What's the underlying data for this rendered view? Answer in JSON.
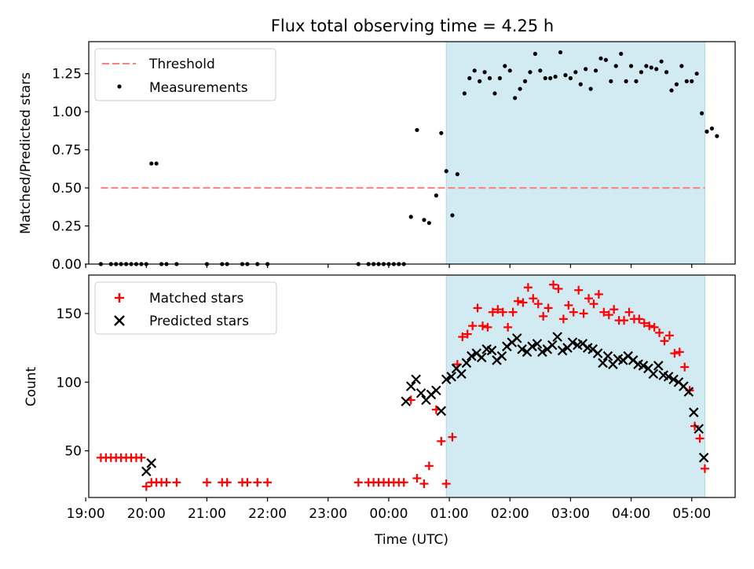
{
  "chart_data": [
    {
      "type": "scatter",
      "title": "Flux total observing time = 4.25 h",
      "ylabel": "Matched/Predicted stars",
      "xlabel": "",
      "xlim": [
        "19:03",
        "05:43"
      ],
      "ylim": [
        0,
        1.46
      ],
      "yticks": [
        "0.00",
        "0.25",
        "0.50",
        "0.75",
        "1.00",
        "1.25"
      ],
      "legend_position": "upper-left",
      "threshold": {
        "name": "Threshold",
        "value": 0.5,
        "x_range": [
          "19:15",
          "05:13"
        ],
        "color": "#ff7f7f"
      },
      "observing_window": {
        "x_range": [
          "00:57",
          "05:13"
        ],
        "color": "#add8e6"
      },
      "series": [
        {
          "name": "Measurements",
          "color": "#000000",
          "points": [
            [
              "19:15",
              0
            ],
            [
              "19:25",
              0
            ],
            [
              "19:30",
              0
            ],
            [
              "19:35",
              0
            ],
            [
              "19:40",
              0
            ],
            [
              "19:45",
              0
            ],
            [
              "19:50",
              0
            ],
            [
              "19:55",
              0
            ],
            [
              "20:00",
              0
            ],
            [
              "20:05",
              0.66
            ],
            [
              "20:10",
              0.66
            ],
            [
              "20:15",
              0
            ],
            [
              "20:20",
              0
            ],
            [
              "20:30",
              0
            ],
            [
              "21:00",
              0
            ],
            [
              "21:15",
              0
            ],
            [
              "21:20",
              0
            ],
            [
              "21:35",
              0
            ],
            [
              "21:40",
              0
            ],
            [
              "21:50",
              0
            ],
            [
              "22:00",
              0
            ],
            [
              "23:30",
              0
            ],
            [
              "23:40",
              0
            ],
            [
              "23:45",
              0
            ],
            [
              "23:50",
              0
            ],
            [
              "23:55",
              0
            ],
            [
              "00:00",
              0
            ],
            [
              "00:05",
              0
            ],
            [
              "00:10",
              0
            ],
            [
              "00:15",
              0
            ],
            [
              "00:22",
              0.31
            ],
            [
              "00:28",
              0.88
            ],
            [
              "00:35",
              0.29
            ],
            [
              "00:40",
              0.27
            ],
            [
              "00:47",
              0.45
            ],
            [
              "00:52",
              0.86
            ],
            [
              "00:57",
              0.61
            ],
            [
              "01:03",
              0.32
            ],
            [
              "01:08",
              0.59
            ],
            [
              "01:15",
              1.12
            ],
            [
              "01:20",
              1.22
            ],
            [
              "01:25",
              1.27
            ],
            [
              "01:30",
              1.2
            ],
            [
              "01:35",
              1.26
            ],
            [
              "01:40",
              1.22
            ],
            [
              "01:45",
              1.12
            ],
            [
              "01:50",
              1.22
            ],
            [
              "01:55",
              1.3
            ],
            [
              "02:00",
              1.27
            ],
            [
              "02:05",
              1.09
            ],
            [
              "02:10",
              1.15
            ],
            [
              "02:15",
              1.2
            ],
            [
              "02:20",
              1.26
            ],
            [
              "02:25",
              1.38
            ],
            [
              "02:30",
              1.27
            ],
            [
              "02:35",
              1.22
            ],
            [
              "02:40",
              1.22
            ],
            [
              "02:45",
              1.23
            ],
            [
              "02:50",
              1.39
            ],
            [
              "02:55",
              1.24
            ],
            [
              "03:00",
              1.22
            ],
            [
              "03:05",
              1.26
            ],
            [
              "03:10",
              1.18
            ],
            [
              "03:15",
              1.28
            ],
            [
              "03:20",
              1.15
            ],
            [
              "03:25",
              1.27
            ],
            [
              "03:30",
              1.35
            ],
            [
              "03:35",
              1.34
            ],
            [
              "03:40",
              1.2
            ],
            [
              "03:45",
              1.3
            ],
            [
              "03:50",
              1.38
            ],
            [
              "03:55",
              1.2
            ],
            [
              "04:00",
              1.3
            ],
            [
              "04:05",
              1.2
            ],
            [
              "04:10",
              1.26
            ],
            [
              "04:15",
              1.3
            ],
            [
              "04:20",
              1.29
            ],
            [
              "04:25",
              1.28
            ],
            [
              "04:30",
              1.33
            ],
            [
              "04:35",
              1.26
            ],
            [
              "04:40",
              1.14
            ],
            [
              "04:45",
              1.18
            ],
            [
              "04:50",
              1.3
            ],
            [
              "04:55",
              1.2
            ],
            [
              "05:00",
              1.2
            ],
            [
              "05:05",
              1.25
            ],
            [
              "05:10",
              0.99
            ],
            [
              "05:15",
              0.87
            ],
            [
              "05:20",
              0.89
            ],
            [
              "05:25",
              0.84
            ]
          ]
        }
      ]
    },
    {
      "type": "scatter",
      "title": "",
      "ylabel": "Count",
      "xlabel": "Time (UTC)",
      "xlim": [
        "19:03",
        "05:43"
      ],
      "ylim": [
        16,
        178
      ],
      "yticks": [
        "50",
        "100",
        "150"
      ],
      "xticks": [
        "19:00",
        "20:00",
        "21:00",
        "22:00",
        "23:00",
        "00:00",
        "01:00",
        "02:00",
        "03:00",
        "04:00",
        "05:00"
      ],
      "legend_position": "upper-left",
      "observing_window": {
        "x_range": [
          "00:57",
          "05:13"
        ],
        "color": "#add8e6"
      },
      "series": [
        {
          "name": "Matched stars",
          "marker": "plus",
          "color": "#ff0000",
          "points": [
            [
              "19:15",
              45
            ],
            [
              "19:20",
              45
            ],
            [
              "19:25",
              45
            ],
            [
              "19:30",
              45
            ],
            [
              "19:35",
              45
            ],
            [
              "19:40",
              45
            ],
            [
              "19:45",
              45
            ],
            [
              "19:50",
              45
            ],
            [
              "19:55",
              45
            ],
            [
              "20:00",
              24
            ],
            [
              "20:05",
              27
            ],
            [
              "20:10",
              27
            ],
            [
              "20:15",
              27
            ],
            [
              "20:20",
              27
            ],
            [
              "20:30",
              27
            ],
            [
              "21:00",
              27
            ],
            [
              "21:15",
              27
            ],
            [
              "21:20",
              27
            ],
            [
              "21:35",
              27
            ],
            [
              "21:40",
              27
            ],
            [
              "21:50",
              27
            ],
            [
              "22:00",
              27
            ],
            [
              "23:30",
              27
            ],
            [
              "23:40",
              27
            ],
            [
              "23:45",
              27
            ],
            [
              "23:50",
              27
            ],
            [
              "23:55",
              27
            ],
            [
              "00:00",
              27
            ],
            [
              "00:05",
              27
            ],
            [
              "00:10",
              27
            ],
            [
              "00:15",
              27
            ],
            [
              "00:22",
              87
            ],
            [
              "00:28",
              30
            ],
            [
              "00:35",
              26
            ],
            [
              "00:40",
              39
            ],
            [
              "00:47",
              80
            ],
            [
              "00:52",
              57
            ],
            [
              "00:57",
              26
            ],
            [
              "01:03",
              60
            ],
            [
              "01:08",
              113
            ],
            [
              "01:13",
              133
            ],
            [
              "01:18",
              135
            ],
            [
              "01:23",
              141
            ],
            [
              "01:28",
              154
            ],
            [
              "01:33",
              141
            ],
            [
              "01:38",
              140
            ],
            [
              "01:43",
              151
            ],
            [
              "01:48",
              153
            ],
            [
              "01:53",
              151
            ],
            [
              "01:58",
              140
            ],
            [
              "02:03",
              151
            ],
            [
              "02:08",
              159
            ],
            [
              "02:13",
              158
            ],
            [
              "02:18",
              169
            ],
            [
              "02:23",
              161
            ],
            [
              "02:28",
              157
            ],
            [
              "02:33",
              148
            ],
            [
              "02:38",
              154
            ],
            [
              "02:43",
              171
            ],
            [
              "02:48",
              168
            ],
            [
              "02:53",
              146
            ],
            [
              "02:58",
              156
            ],
            [
              "03:03",
              151
            ],
            [
              "03:08",
              167
            ],
            [
              "03:13",
              150
            ],
            [
              "03:18",
              161
            ],
            [
              "03:23",
              157
            ],
            [
              "03:28",
              164
            ],
            [
              "03:33",
              151
            ],
            [
              "03:38",
              149
            ],
            [
              "03:43",
              153
            ],
            [
              "03:48",
              145
            ],
            [
              "03:53",
              145
            ],
            [
              "03:58",
              151
            ],
            [
              "04:03",
              146
            ],
            [
              "04:08",
              146
            ],
            [
              "04:13",
              143
            ],
            [
              "04:18",
              141
            ],
            [
              "04:23",
              140
            ],
            [
              "04:28",
              136
            ],
            [
              "04:33",
              130
            ],
            [
              "04:38",
              134
            ],
            [
              "04:43",
              121
            ],
            [
              "04:48",
              122
            ],
            [
              "04:53",
              111
            ],
            [
              "04:58",
              94
            ],
            [
              "05:03",
              68
            ],
            [
              "05:08",
              59
            ],
            [
              "05:13",
              37
            ]
          ]
        },
        {
          "name": "Predicted stars",
          "marker": "x",
          "color": "#000000",
          "points": [
            [
              "20:00",
              35
            ],
            [
              "20:05",
              41
            ],
            [
              "00:17",
              86
            ],
            [
              "00:22",
              97
            ],
            [
              "00:27",
              102
            ],
            [
              "00:32",
              92
            ],
            [
              "00:37",
              87
            ],
            [
              "00:42",
              91
            ],
            [
              "00:47",
              94
            ],
            [
              "00:52",
              79
            ],
            [
              "00:57",
              102
            ],
            [
              "01:02",
              104
            ],
            [
              "01:07",
              110
            ],
            [
              "01:12",
              106
            ],
            [
              "01:17",
              114
            ],
            [
              "01:22",
              119
            ],
            [
              "01:27",
              121
            ],
            [
              "01:32",
              118
            ],
            [
              "01:37",
              124
            ],
            [
              "01:42",
              123
            ],
            [
              "01:47",
              116
            ],
            [
              "01:52",
              119
            ],
            [
              "01:57",
              126
            ],
            [
              "02:02",
              129
            ],
            [
              "02:07",
              132
            ],
            [
              "02:12",
              124
            ],
            [
              "02:17",
              122
            ],
            [
              "02:22",
              126
            ],
            [
              "02:27",
              128
            ],
            [
              "02:32",
              122
            ],
            [
              "02:37",
              124
            ],
            [
              "02:42",
              127
            ],
            [
              "02:47",
              133
            ],
            [
              "02:52",
              123
            ],
            [
              "02:57",
              125
            ],
            [
              "03:02",
              129
            ],
            [
              "03:07",
              127
            ],
            [
              "03:12",
              128
            ],
            [
              "03:17",
              125
            ],
            [
              "03:22",
              124
            ],
            [
              "03:27",
              121
            ],
            [
              "03:32",
              114
            ],
            [
              "03:37",
              119
            ],
            [
              "03:42",
              113
            ],
            [
              "03:47",
              117
            ],
            [
              "03:52",
              116
            ],
            [
              "03:57",
              119
            ],
            [
              "04:02",
              116
            ],
            [
              "04:07",
              113
            ],
            [
              "04:12",
              112
            ],
            [
              "04:17",
              110
            ],
            [
              "04:22",
              106
            ],
            [
              "04:27",
              112
            ],
            [
              "04:32",
              105
            ],
            [
              "04:37",
              104
            ],
            [
              "04:42",
              102
            ],
            [
              "04:47",
              100
            ],
            [
              "04:52",
              97
            ],
            [
              "04:57",
              93
            ],
            [
              "05:02",
              78
            ],
            [
              "05:07",
              66
            ],
            [
              "05:12",
              45
            ]
          ]
        }
      ]
    }
  ]
}
